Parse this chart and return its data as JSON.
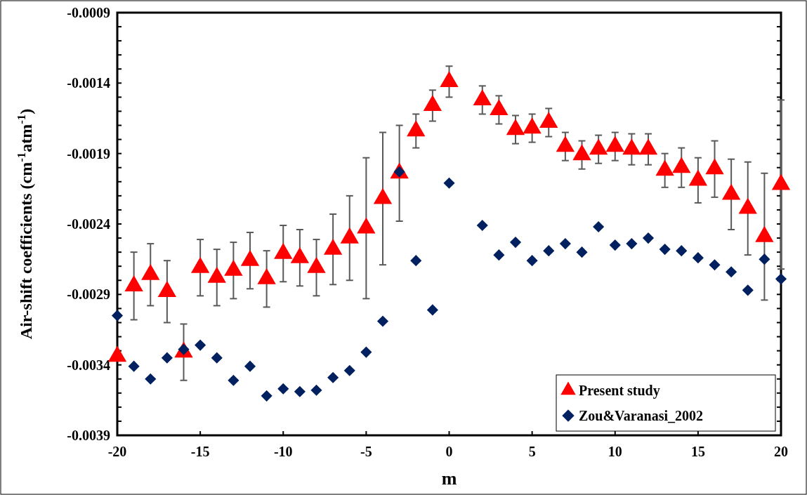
{
  "chart_data": {
    "type": "scatter",
    "xlabel": "m",
    "ylabel": "Air-shift coefficients (cm$^{-1}$atm$^{-1}$)",
    "x": [
      -20,
      -19,
      -18,
      -17,
      -16,
      -15,
      -14,
      -13,
      -12,
      -11,
      -10,
      -9,
      -8,
      -7,
      -6,
      -5,
      -4,
      -3,
      -2,
      -1,
      0,
      2,
      3,
      4,
      5,
      6,
      7,
      8,
      9,
      10,
      11,
      12,
      13,
      14,
      15,
      16,
      17,
      18,
      19,
      20
    ],
    "series": [
      {
        "name": "Present study",
        "color": "#ff0000",
        "marker": "triangle",
        "values": [
          -0.00334,
          -0.00284,
          -0.00276,
          -0.00288,
          -0.00331,
          -0.00271,
          -0.00278,
          -0.00273,
          -0.00266,
          -0.00279,
          -0.00261,
          -0.00264,
          -0.00271,
          -0.00258,
          -0.0025,
          -0.00243,
          -0.00222,
          -0.00204,
          -0.00174,
          -0.00156,
          -0.00139,
          -0.00152,
          -0.00159,
          -0.00173,
          -0.00172,
          -0.00168,
          -0.00185,
          -0.00191,
          -0.00187,
          -0.00185,
          -0.00187,
          -0.00187,
          -0.00202,
          -0.002,
          -0.00209,
          -0.00201,
          -0.00219,
          -0.00229,
          -0.00249,
          -0.00212
        ],
        "errors": [
          null,
          0.00024,
          0.00022,
          0.00022,
          0.0002,
          0.0002,
          0.0002,
          0.0002,
          0.0002,
          0.0002,
          0.0002,
          0.0002,
          0.0002,
          0.00025,
          0.0003,
          0.0005,
          0.00047,
          0.00034,
          0.00012,
          0.00011,
          0.00011,
          0.0001,
          0.0001,
          0.0001,
          0.0001,
          0.0001,
          0.0001,
          0.0001,
          0.0001,
          0.0001,
          0.00011,
          0.00011,
          0.00012,
          0.00014,
          0.00016,
          0.0002,
          0.00025,
          0.00033,
          0.00045,
          0.0006
        ]
      },
      {
        "name": "Zou&Varanasi_2002",
        "color": "#002060",
        "marker": "diamond",
        "values": [
          -0.00305,
          -0.00341,
          -0.0035,
          -0.00335,
          -0.00329,
          -0.00326,
          -0.00335,
          -0.00351,
          -0.00341,
          -0.00362,
          -0.00357,
          -0.00359,
          -0.00358,
          -0.00349,
          -0.00344,
          -0.00331,
          -0.00309,
          -0.00203,
          -0.00266,
          -0.00301,
          -0.00211,
          -0.00241,
          -0.00262,
          -0.00253,
          -0.00266,
          -0.00259,
          -0.00254,
          -0.0026,
          -0.00242,
          -0.00255,
          -0.00254,
          -0.0025,
          -0.00258,
          -0.00259,
          -0.00264,
          -0.00269,
          -0.00274,
          -0.00287,
          -0.00265,
          -0.00279
        ]
      }
    ],
    "xlim": [
      -20,
      20
    ],
    "xticks": [
      -20,
      -15,
      -10,
      -5,
      0,
      5,
      10,
      15,
      20
    ],
    "ylim": [
      -0.0039,
      -0.0009
    ],
    "yticks": [
      -0.0039,
      {
        "value": -0.0038,
        "label": null
      },
      {
        "value": -0.0037,
        "label": null
      },
      {
        "value": -0.0036,
        "label": null
      },
      {
        "value": -0.0035,
        "label": null
      },
      -0.0034,
      {
        "value": -0.0033,
        "label": null
      },
      {
        "value": -0.0032,
        "label": null
      },
      {
        "value": -0.0031,
        "label": null
      },
      {
        "value": -0.003,
        "label": null
      },
      -0.0029,
      {
        "value": -0.0028,
        "label": null
      },
      {
        "value": -0.0027,
        "label": null
      },
      {
        "value": -0.0026,
        "label": null
      },
      {
        "value": -0.0025,
        "label": null
      },
      -0.0024,
      {
        "value": -0.0023,
        "label": null
      },
      {
        "value": -0.0022,
        "label": null
      },
      {
        "value": -0.0021,
        "label": null
      },
      {
        "value": -0.002,
        "label": null
      },
      -0.0019,
      {
        "value": -0.0018,
        "label": null
      },
      {
        "value": -0.0017,
        "label": null
      },
      {
        "value": -0.0016,
        "label": null
      },
      {
        "value": -0.0015,
        "label": null
      },
      -0.0014,
      {
        "value": -0.0013,
        "label": null
      },
      {
        "value": -0.0012,
        "label": null
      },
      {
        "value": -0.0011,
        "label": null
      },
      {
        "value": -0.001,
        "label": null
      },
      -0.0009
    ],
    "grid": false,
    "legend": "bottom right"
  }
}
